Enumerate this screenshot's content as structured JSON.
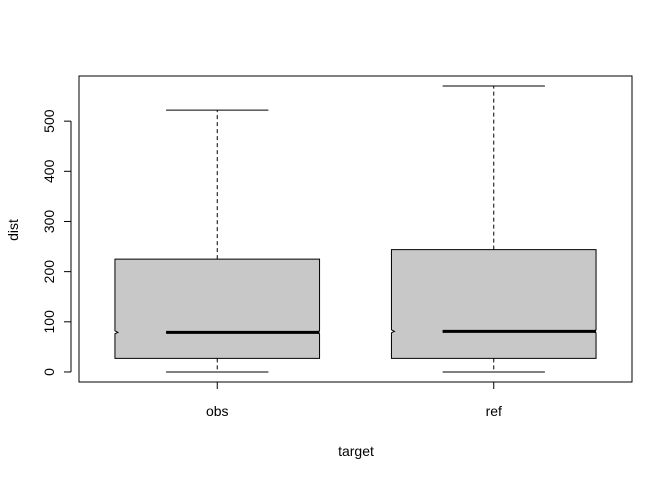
{
  "chart_data": {
    "type": "boxplot",
    "title": "",
    "xlabel": "target",
    "ylabel": "dist",
    "ylim": [
      -20,
      590
    ],
    "y_ticks": [
      0,
      100,
      200,
      300,
      400,
      500
    ],
    "y_tick_labels": [
      "0",
      "100",
      "200",
      "300",
      "400",
      "500"
    ],
    "categories": [
      "obs",
      "ref"
    ],
    "boxes": [
      {
        "name": "obs",
        "whisker_low": 0,
        "q1": 27,
        "median": 79,
        "q3": 225,
        "whisker_high": 522,
        "notched": true
      },
      {
        "name": "ref",
        "whisker_low": 0,
        "q1": 27,
        "median": 81,
        "q3": 244,
        "whisker_high": 570,
        "notched": true
      }
    ],
    "grid": false,
    "legend": "none",
    "colors": {
      "box_fill": "#c8c8c8",
      "stroke": "#000000",
      "background": "#ffffff"
    }
  }
}
